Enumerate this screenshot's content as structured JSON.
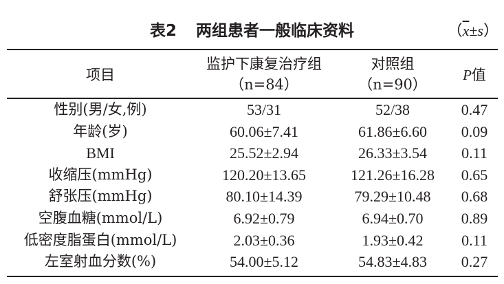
{
  "caption": {
    "label": "表2",
    "title": "两组患者一般临床资料",
    "stat_open": "（",
    "stat_mean": "x",
    "stat_pm": "±",
    "stat_sd": "s",
    "stat_close": "）"
  },
  "table": {
    "header": {
      "item": "项目",
      "group_a_name": "监护下康复治疗组",
      "group_a_n": "（n=84）",
      "group_b_name": "对照组",
      "group_b_n": "（n=90）",
      "p_letter": "P",
      "p_suffix": "值"
    },
    "rows": [
      {
        "item": "性别(男/女,例)",
        "a": "53/31",
        "b": "52/38",
        "p": "0.47"
      },
      {
        "item": "年龄(岁)",
        "a": "60.06±7.41",
        "b": "61.86±6.60",
        "p": "0.09"
      },
      {
        "item": "BMI",
        "a": "25.52±2.94",
        "b": "26.33±3.54",
        "p": "0.11"
      },
      {
        "item": "收缩压(mmHg)",
        "a": "120.20±13.65",
        "b": "121.26±16.28",
        "p": "0.65"
      },
      {
        "item": "舒张压(mmHg)",
        "a": "80.10±14.39",
        "b": "79.29±10.48",
        "p": "0.68"
      },
      {
        "item": "空腹血糖(mmol/L)",
        "a": "6.92±0.79",
        "b": "6.94±0.70",
        "p": "0.89"
      },
      {
        "item": "低密度脂蛋白(mmol/L)",
        "a": "2.03±0.36",
        "b": "1.93±0.42",
        "p": "0.11"
      },
      {
        "item": "左室射血分数(%)",
        "a": "54.00±5.12",
        "b": "54.83±4.83",
        "p": "0.27"
      }
    ]
  }
}
